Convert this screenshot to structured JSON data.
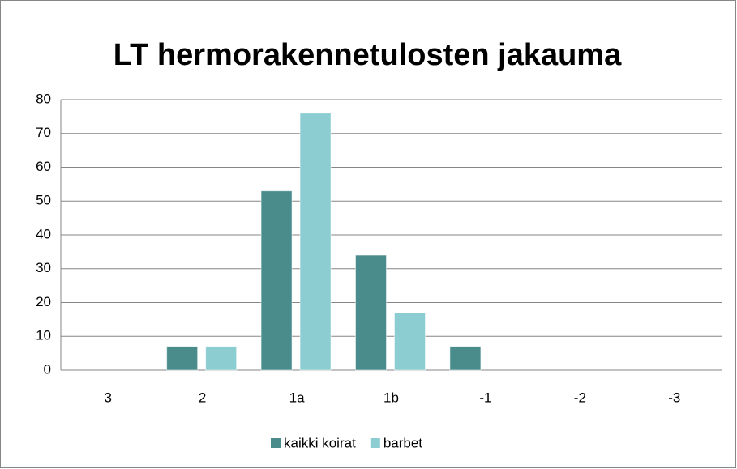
{
  "chart_data": {
    "type": "bar",
    "title": "LT hermorakennetulosten jakauma",
    "categories": [
      "3",
      "2",
      "1a",
      "1b",
      "-1",
      "-2",
      "-3"
    ],
    "series": [
      {
        "name": "kaikki koirat",
        "color": "#4a8c8c",
        "values": [
          0,
          7,
          53,
          34,
          7,
          0,
          0
        ]
      },
      {
        "name": "barbet",
        "color": "#8ccdd1",
        "values": [
          0,
          7,
          76,
          17,
          0,
          0,
          0
        ]
      }
    ],
    "ylim": [
      0,
      80
    ],
    "yticks": [
      0,
      10,
      20,
      30,
      40,
      50,
      60,
      70,
      80
    ],
    "grid": true,
    "legend": "bottom"
  }
}
